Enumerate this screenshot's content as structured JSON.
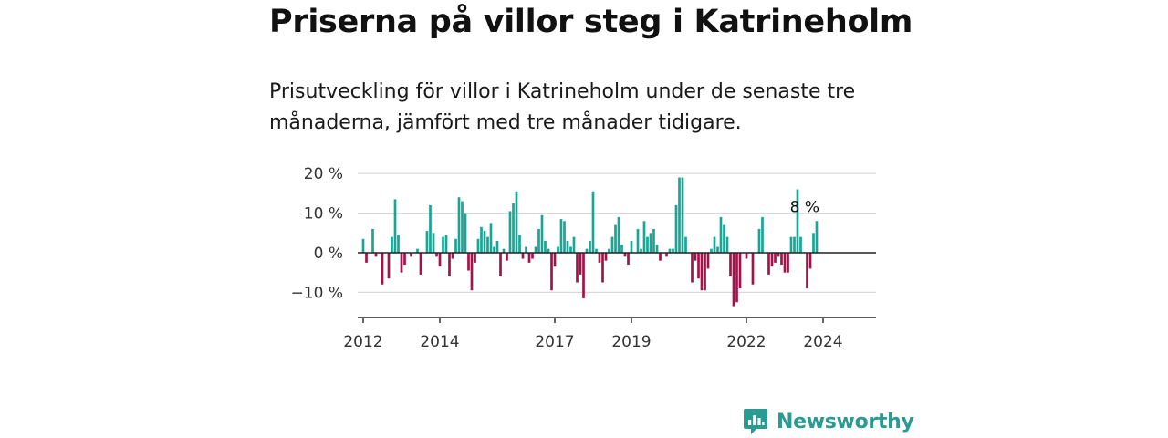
{
  "title": "Priserna på villor steg i Katrineholm",
  "subtitle": "Prisutveckling för villor i Katrineholm under de senaste tre månaderna, jämfört med tre månader tidigare.",
  "brand": {
    "name": "Newsworthy",
    "color": "#2a9a92"
  },
  "colors": {
    "positive": "#1aa597",
    "negative": "#a3134a",
    "grid": "#d9d9d9",
    "axis": "#222222"
  },
  "chart_data": {
    "type": "bar",
    "title": "Priserna på villor steg i Katrineholm",
    "xlabel": "",
    "ylabel": "",
    "x_start": "2012-01",
    "x_end": "2025-04",
    "ylim": [
      -16,
      21
    ],
    "y_ticks": [
      20,
      10,
      0,
      -10
    ],
    "y_tick_labels": [
      "20 %",
      "10 %",
      "0 %",
      "−10 %"
    ],
    "x_ticks": [
      "2012-01",
      "2014-01",
      "2017-01",
      "2019-01",
      "2022-01",
      "2024-01"
    ],
    "x_tick_labels": [
      "2012",
      "2014",
      "2017",
      "2019",
      "2022",
      "2024"
    ],
    "grid": true,
    "series": [
      {
        "values": [
          3.5,
          -2.5,
          null,
          6.0,
          -1.0,
          null,
          -8.0,
          null,
          -6.5,
          4.0,
          13.5,
          4.5,
          -5.0,
          -3.0,
          null,
          -1.0,
          null,
          1.0,
          -5.5,
          null,
          5.5,
          12.0,
          5.0,
          -1.0,
          -3.5,
          4.0,
          4.5,
          -6.0,
          -1.5,
          3.5,
          14.0,
          13.0,
          10.0,
          -4.5,
          -9.5,
          -2.5,
          3.5,
          6.5,
          5.5,
          4.0,
          7.5,
          1.5,
          3.0,
          -6.0,
          1.0,
          -2.0,
          10.5,
          12.5,
          15.5,
          4.5,
          -1.5,
          1.5,
          -2.5,
          -1.5,
          1.5,
          6.0,
          9.5,
          3.0,
          1.0,
          -9.5,
          -3.5,
          1.5,
          8.5,
          8.0,
          3.0,
          1.5,
          4.0,
          -7.5,
          -5.5,
          -11.5,
          1.0,
          3.0,
          15.5,
          1.0,
          -2.5,
          -7.5,
          -2.0,
          1.0,
          4.0,
          7.0,
          9.0,
          2.0,
          -1.0,
          -3.0,
          3.0,
          null,
          6.0,
          1.0,
          8.0,
          4.0,
          5.0,
          6.0,
          2.0,
          -2.0,
          null,
          -1.0,
          1.0,
          1.0,
          12.0,
          19.0,
          19.0,
          4.0,
          null,
          -7.5,
          -2.0,
          -6.5,
          -9.5,
          -9.5,
          -4.0,
          1.0,
          4.0,
          1.5,
          9.0,
          7.0,
          4.0,
          -6.0,
          -13.5,
          -12.5,
          -9.0,
          null,
          -1.5,
          null,
          -8.0,
          null,
          6.0,
          9.0,
          null,
          -5.5,
          -3.5,
          -2.5,
          -1.0,
          -3.0,
          -5.0,
          -5.0,
          4.0,
          4.0,
          16.0,
          4.0,
          null,
          -9.0,
          -4.0,
          5.0,
          8.0
        ],
        "last_label": "8 %"
      }
    ]
  }
}
